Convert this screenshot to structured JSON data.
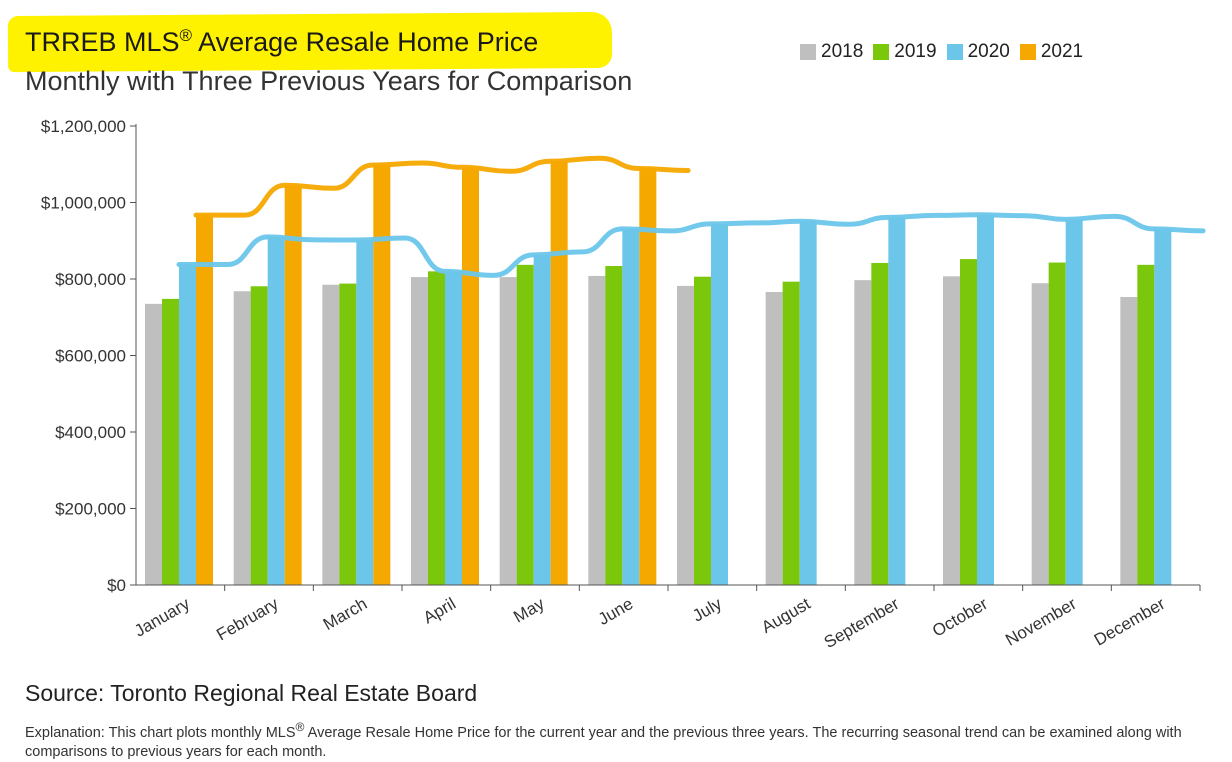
{
  "header": {
    "title_main": "TRREB MLS",
    "title_sup": "®",
    "title_rest": " Average Resale Home Price",
    "subtitle": "Monthly with Three Previous Years for Comparison"
  },
  "legend": [
    {
      "label": "2018",
      "color": "#bfbfbf"
    },
    {
      "label": "2019",
      "color": "#7ac70c"
    },
    {
      "label": "2020",
      "color": "#6cc6ea"
    },
    {
      "label": "2021",
      "color": "#f5a800"
    }
  ],
  "footer": {
    "source": "Source: Toronto Regional Real Estate Board",
    "explanation_a": "Explanation: This chart plots monthly MLS",
    "explanation_sup": "®",
    "explanation_b": " Average Resale Home Price for the current year and the previous three years. The recurring seasonal trend can be examined along with comparisons to previous years for each month."
  },
  "chart_data": {
    "type": "bar",
    "title": "TRREB MLS® Average Resale Home Price",
    "subtitle": "Monthly with Three Previous Years for Comparison",
    "categories": [
      "January",
      "February",
      "March",
      "April",
      "May",
      "June",
      "July",
      "August",
      "September",
      "October",
      "November",
      "December"
    ],
    "ylim": [
      0,
      1200000
    ],
    "yticks": [
      0,
      200000,
      400000,
      600000,
      800000,
      1000000,
      1200000
    ],
    "ytick_labels": [
      "$0",
      "$200,000",
      "$400,000",
      "$600,000",
      "$800,000",
      "$1,000,000",
      "$1,200,000"
    ],
    "legend_position": "top-right",
    "grid": false,
    "series": [
      {
        "name": "2018",
        "color": "#bfbfbf",
        "values": [
          735000,
          768000,
          785000,
          805000,
          805000,
          808000,
          782000,
          766000,
          797000,
          807000,
          789000,
          753000
        ]
      },
      {
        "name": "2019",
        "color": "#7ac70c",
        "values": [
          748000,
          781000,
          788000,
          820000,
          837000,
          834000,
          806000,
          793000,
          842000,
          852000,
          843000,
          837000
        ]
      },
      {
        "name": "2020",
        "color": "#6cc6ea",
        "values": [
          838000,
          910000,
          902000,
          820000,
          863000,
          931000,
          944000,
          951000,
          961000,
          968000,
          956000,
          931000
        ]
      },
      {
        "name": "2021",
        "color": "#f5a800",
        "values": [
          967000,
          1045000,
          1098000,
          1092000,
          1108000,
          1089000,
          null,
          null,
          null,
          null,
          null,
          null
        ]
      }
    ],
    "annotations": [
      {
        "type": "hand-drawn-line",
        "series": "2020",
        "color": "#6cc6ea",
        "months": [
          "January",
          "February",
          "March",
          "April",
          "May",
          "June"
        ]
      },
      {
        "type": "hand-drawn-line",
        "series": "2021",
        "color": "#f5a800",
        "months": [
          "January",
          "February",
          "March",
          "April",
          "May",
          "June"
        ]
      },
      {
        "type": "highlight",
        "target": "title",
        "color": "#fff200"
      }
    ]
  }
}
